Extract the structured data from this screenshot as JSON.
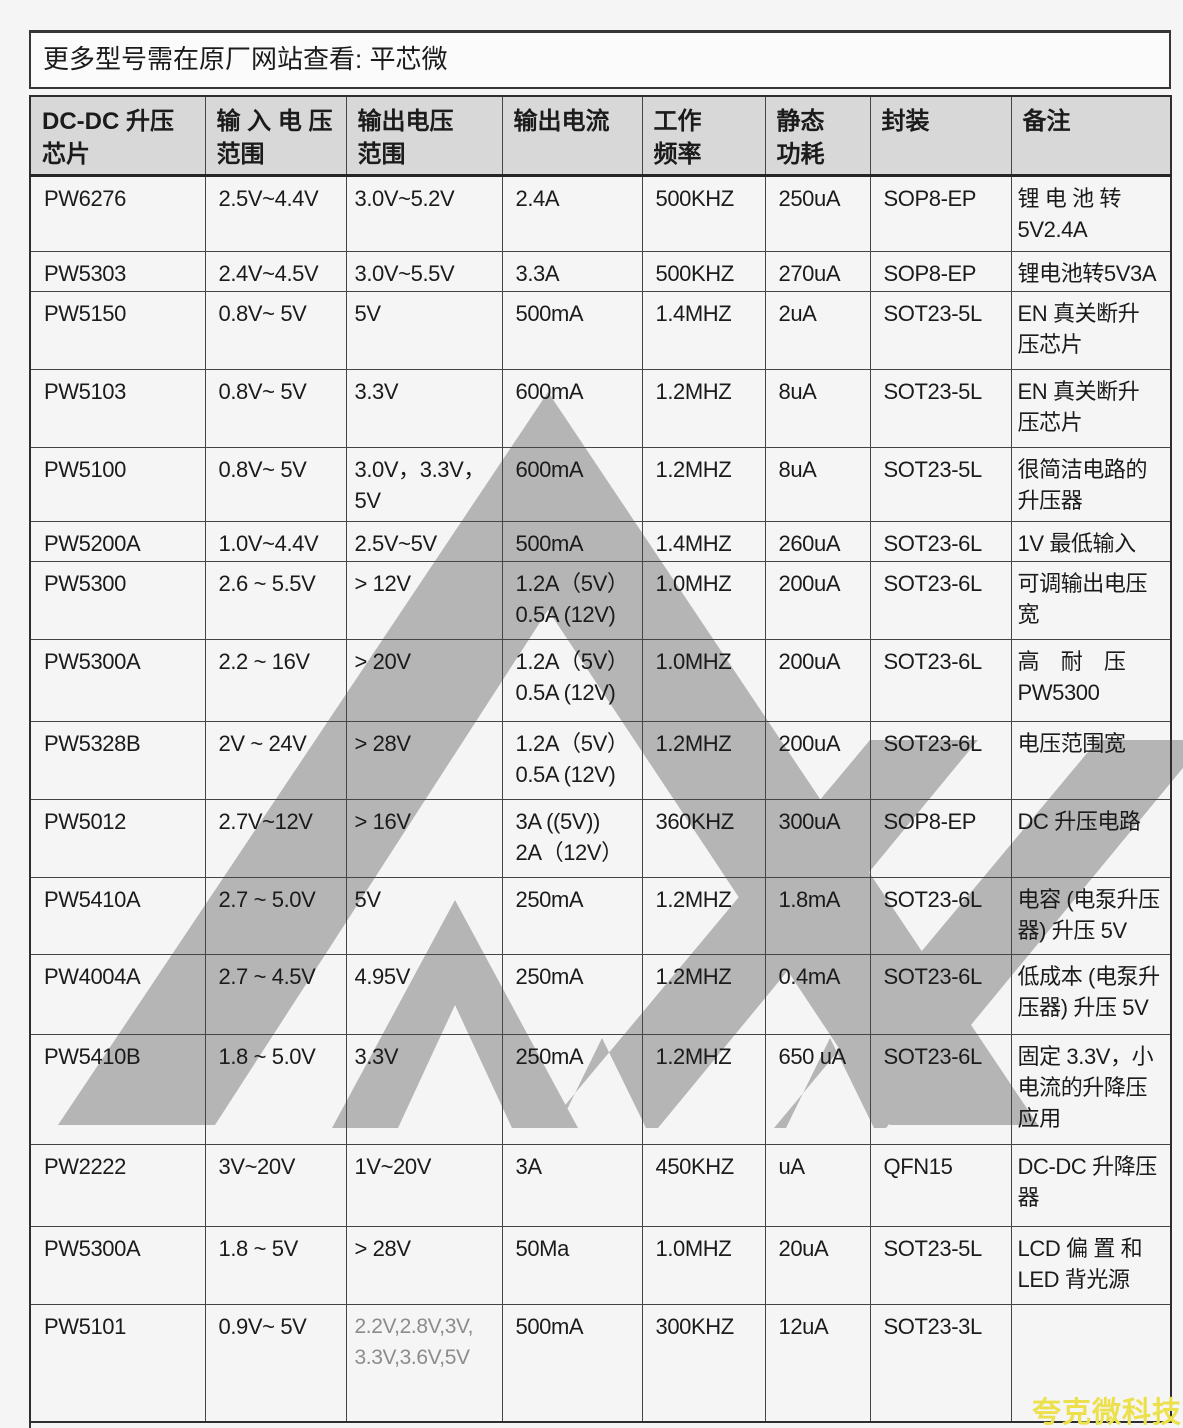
{
  "notice": {
    "text": "更多型号需在原厂网站查看: 平芯微"
  },
  "colors": {
    "page_bg": "#f5f5f5",
    "header_bg": "#d8d8d8",
    "border": "#454545",
    "logo_watermark": "#b5b5b5",
    "brand_watermark": "#ece14d",
    "muted_text": "#8c8c8c",
    "text": "#1b1b1b"
  },
  "watermark": {
    "brand_text": "夸克微科技",
    "logo_shape": "aw-chevron-logo"
  },
  "table": {
    "headers": [
      "DC-DC 升压\n芯片",
      "输 入 电 压\n范围",
      "输出电压\n范围",
      "输出电流",
      "工作\n频率",
      "静态\n功耗",
      "封装",
      "备注"
    ],
    "rows": [
      {
        "model": "PW6276",
        "input_range": "2.5V~4.4V",
        "output_range": "3.0V~5.2V",
        "output_current": "2.4A",
        "frequency": "500KHZ",
        "quiescent": "250uA",
        "package": "SOP8-EP",
        "note": "锂 电 池 转\n5V2.4A"
      },
      {
        "model": "PW5303",
        "input_range": "2.4V~4.5V",
        "output_range": "3.0V~5.5V",
        "output_current": "3.3A",
        "frequency": "500KHZ",
        "quiescent": "270uA",
        "package": "SOP8-EP",
        "note": "锂电池转5V3A"
      },
      {
        "model": "PW5150",
        "input_range": "0.8V~ 5V",
        "output_range": "5V",
        "output_current": "500mA",
        "frequency": "1.4MHZ",
        "quiescent": "2uA",
        "package": "SOT23-5L",
        "note": "EN 真关断升\n压芯片"
      },
      {
        "model": "PW5103",
        "input_range": "0.8V~ 5V",
        "output_range": "3.3V",
        "output_current": "600mA",
        "frequency": "1.2MHZ",
        "quiescent": "8uA",
        "package": "SOT23-5L",
        "note": "EN 真关断升\n压芯片"
      },
      {
        "model": "PW5100",
        "input_range": "0.8V~ 5V",
        "output_range": "3.0V，3.3V，\n5V",
        "output_current": "600mA",
        "frequency": "1.2MHZ",
        "quiescent": "8uA",
        "package": "SOT23-5L",
        "note": "很简洁电路的\n升压器"
      },
      {
        "model": "PW5200A",
        "input_range": "1.0V~4.4V",
        "output_range": "2.5V~5V",
        "output_current": "500mA",
        "frequency": "1.4MHZ",
        "quiescent": "260uA",
        "package": "SOT23-6L",
        "note": "1V 最低输入"
      },
      {
        "model": "PW5300",
        "input_range": "2.6 ~ 5.5V",
        "output_range": "> 12V",
        "output_current": "1.2A（5V）\n0.5A (12V)",
        "frequency": "1.0MHZ",
        "quiescent": "200uA",
        "package": "SOT23-6L",
        "note": "可调输出电压\n宽"
      },
      {
        "model": "PW5300A",
        "input_range": "2.2 ~ 16V",
        "output_range": "> 20V",
        "output_current": "1.2A（5V）\n0.5A (12V)",
        "frequency": "1.0MHZ",
        "quiescent": "200uA",
        "package": "SOT23-6L",
        "note": "高　耐　压\nPW5300"
      },
      {
        "model": "PW5328B",
        "input_range": "2V ~ 24V",
        "output_range": "> 28V",
        "output_current": "1.2A（5V）\n0.5A (12V)",
        "frequency": "1.2MHZ",
        "quiescent": "200uA",
        "package": "SOT23-6L",
        "note": "电压范围宽"
      },
      {
        "model": "PW5012",
        "input_range": "2.7V~12V",
        "output_range": "> 16V",
        "output_current": "3A ((5V))\n2A（12V）",
        "frequency": "360KHZ",
        "quiescent": "300uA",
        "package": "SOP8-EP",
        "note": "DC 升压电路"
      },
      {
        "model": "PW5410A",
        "input_range": "2.7 ~ 5.0V",
        "output_range": "5V",
        "output_current": "250mA",
        "frequency": "1.2MHZ",
        "quiescent": "1.8mA",
        "package": "SOT23-6L",
        "note": "电容 (电泵升压\n器) 升压 5V"
      },
      {
        "model": "PW4004A",
        "input_range": "2.7 ~ 4.5V",
        "output_range": "4.95V",
        "output_current": "250mA",
        "frequency": "1.2MHZ",
        "quiescent": "0.4mA",
        "package": "SOT23-6L",
        "note": "低成本 (电泵升\n压器) 升压 5V"
      },
      {
        "model": "PW5410B",
        "input_range": "1.8 ~ 5.0V",
        "output_range": "3.3V",
        "output_current": "250mA",
        "frequency": "1.2MHZ",
        "quiescent": "650 uA",
        "package": "SOT23-6L",
        "note": "固定 3.3V，小\n电流的升降压\n应用"
      },
      {
        "model": "PW2222",
        "input_range": "3V~20V",
        "output_range": "1V~20V",
        "output_current": "3A",
        "frequency": "450KHZ",
        "quiescent": "uA",
        "package": "QFN15",
        "note": "DC-DC 升降压\n器"
      },
      {
        "model": "PW5300A",
        "input_range": "1.8 ~ 5V",
        "output_range": "> 28V",
        "output_current": "50Ma",
        "frequency": "1.0MHZ",
        "quiescent": "20uA",
        "package": "SOT23-5L",
        "note": "LCD 偏 置 和\nLED 背光源"
      },
      {
        "model": "PW5101",
        "input_range": "0.9V~ 5V",
        "output_range": "2.2V,2.8V,3V,\n3.3V,3.6V,5V",
        "output_range_muted": true,
        "output_current": "500mA",
        "frequency": "300KHZ",
        "quiescent": "12uA",
        "package": "SOT23-3L",
        "note": ""
      }
    ]
  }
}
